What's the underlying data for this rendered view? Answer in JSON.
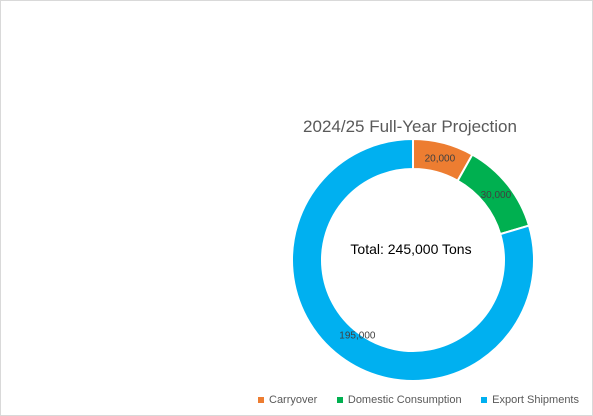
{
  "chart_data": {
    "type": "pie",
    "donut": true,
    "title": "2024/25 Full-Year Projection",
    "center_label": "Total: 245,000  Tons",
    "categories": [
      "Carryover",
      "Domestic Consumption",
      "Export Shipments"
    ],
    "values": [
      20000,
      30000,
      195000
    ],
    "data_labels": [
      "20,000",
      "30,000",
      "195,000"
    ],
    "colors": [
      "#ED7D31",
      "#00B050",
      "#00B0F0"
    ],
    "legend": "bottom"
  }
}
